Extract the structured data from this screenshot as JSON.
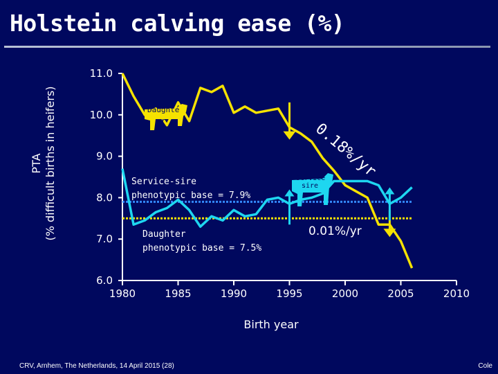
{
  "title": "Holstein calving ease (%)",
  "footer_left": "CRV, Arnhem, The Netherlands, 14 April 2015 (28)",
  "footer_right": "Cole",
  "chart_data": {
    "type": "line",
    "ylabel_line1": "PTA",
    "ylabel_line2": "(% difficult births in heifers)",
    "xlabel": "Birth year",
    "xlim": [
      1980,
      2010
    ],
    "ylim": [
      6.0,
      11.0
    ],
    "x_ticks": [
      "1980",
      "1985",
      "1990",
      "1995",
      "2000",
      "2005",
      "2010"
    ],
    "y_ticks": [
      "6.0",
      "7.0",
      "8.0",
      "9.0",
      "10.0",
      "11.0"
    ],
    "series": [
      {
        "name": "Daughter",
        "color": "#f5e200",
        "x": [
          1980,
          1981,
          1982,
          1983,
          1984,
          1985,
          1986,
          1987,
          1988,
          1989,
          1990,
          1991,
          1992,
          1993,
          1994,
          1995,
          1996,
          1997,
          1998,
          1999,
          2000,
          2001,
          2002,
          2003,
          2004,
          2005,
          2006
        ],
        "y": [
          11.0,
          10.45,
          10.0,
          10.15,
          9.75,
          10.3,
          9.85,
          10.65,
          10.55,
          10.7,
          10.05,
          10.2,
          10.05,
          10.1,
          10.15,
          9.7,
          9.55,
          9.35,
          8.95,
          8.65,
          8.3,
          8.15,
          8.0,
          7.35,
          7.35,
          6.95,
          6.3
        ]
      },
      {
        "name": "Service sire",
        "color": "#1ed6f0",
        "x": [
          1980,
          1981,
          1982,
          1983,
          1984,
          1985,
          1986,
          1987,
          1988,
          1989,
          1990,
          1991,
          1992,
          1993,
          1994,
          1995,
          1996,
          1997,
          1998,
          1999,
          2000,
          2001,
          2002,
          2003,
          2004,
          2005,
          2006
        ],
        "y": [
          8.7,
          7.35,
          7.45,
          7.65,
          7.75,
          7.95,
          7.7,
          7.3,
          7.55,
          7.45,
          7.7,
          7.55,
          7.6,
          7.95,
          8.0,
          7.85,
          7.95,
          8.0,
          8.1,
          8.4,
          8.4,
          8.4,
          8.4,
          8.3,
          7.85,
          8.0,
          8.25
        ]
      }
    ],
    "reference_lines": [
      {
        "label_line1": "Service-sire",
        "label_line2": "phenotypic base = 7.9%",
        "y": 7.9,
        "color": "#3388ff"
      },
      {
        "label_line1": "Daughter",
        "label_line2": "phenotypic base = 7.5%",
        "y": 7.5,
        "color": "#f5e200"
      }
    ],
    "annotations": [
      {
        "text": "Daughte",
        "sub": "r",
        "icon": "cow-daughter-icon",
        "color": "#f5e200"
      },
      {
        "text": "Service",
        "sub": "sire",
        "icon": "cow-service-sire-icon",
        "color": "#1ed6f0"
      },
      {
        "text": "0.18%/yr"
      },
      {
        "text": "0.01%/yr"
      }
    ],
    "markers": [
      {
        "x": 1995,
        "y_from": 10.3,
        "y_to": 9.4,
        "direction": "down",
        "color": "#f5e200"
      },
      {
        "x": 2004,
        "y_from": 7.7,
        "y_to": 7.05,
        "direction": "down",
        "color": "#f5e200"
      },
      {
        "x": 1995,
        "y_from": 7.35,
        "y_to": 8.2,
        "direction": "up",
        "color": "#1ed6f0"
      },
      {
        "x": 2004,
        "y_from": 7.45,
        "y_to": 8.25,
        "direction": "up",
        "color": "#1ed6f0"
      }
    ]
  }
}
